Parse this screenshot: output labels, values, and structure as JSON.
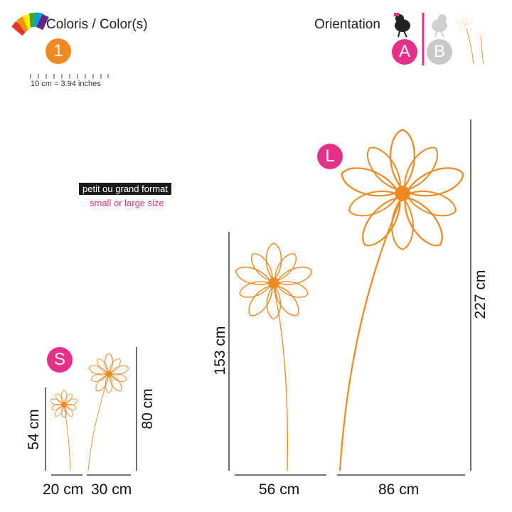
{
  "header": {
    "colors_label": "Coloris / Color(s)",
    "orientation_label": "Orientation",
    "color_count": "1",
    "orientation_a": "A",
    "orientation_b": "B",
    "scale_label": "10 cm = 3.94 inches"
  },
  "size_note": {
    "fr": "petit ou grand format",
    "en": "small or large size"
  },
  "variants": {
    "small": {
      "badge": "S",
      "flower1_height": "54 cm",
      "flower1_width": "20 cm",
      "flower2_height": "80 cm",
      "flower2_width": "30 cm"
    },
    "large": {
      "badge": "L",
      "flower1_height": "153 cm",
      "flower1_width": "56 cm",
      "flower2_height": "227 cm",
      "flower2_width": "86 cm"
    }
  },
  "colors": {
    "flower": "#ef8a22",
    "accent_pink": "#e5308a",
    "inactive_gray": "#c8c8c8",
    "dimension_line": "#222222"
  },
  "icons": [
    "color-palette-icon",
    "bird-icon",
    "flower-thumbnail-icon"
  ]
}
